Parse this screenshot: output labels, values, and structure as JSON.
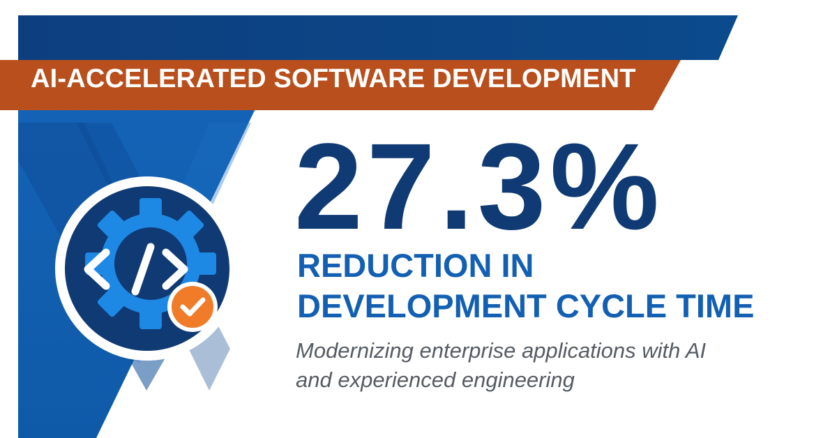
{
  "colors": {
    "navy": "#0f3a73",
    "brand_blue": "#1360b3",
    "banner_orange": "#b84f1c",
    "check_orange": "#f07b28",
    "gear_blue": "#1e88e5",
    "text_gray": "#555b63"
  },
  "banner": {
    "label": "AI-ACCELERATED SOFTWARE DEVELOPMENT"
  },
  "stat": {
    "value": "27.3%",
    "caption_line1": "REDUCTION IN",
    "caption_line2": "DEVELOPMENT CYCLE TIME"
  },
  "tagline": {
    "line1": "Modernizing enterprise applications with AI",
    "line2": "and experienced engineering"
  },
  "icons": {
    "badge": "code-gear-icon",
    "check": "check-badge-icon"
  }
}
